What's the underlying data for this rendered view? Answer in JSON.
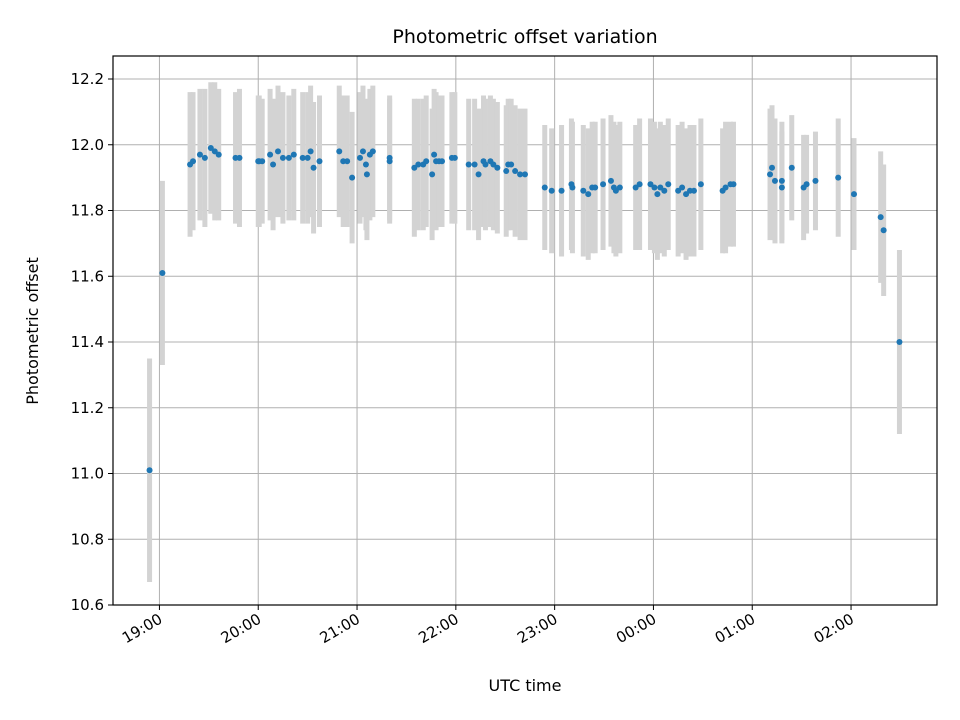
{
  "chart_data": {
    "type": "scatter",
    "title": "Photometric offset variation",
    "xlabel": "UTC time",
    "ylabel": "Photometric offset",
    "x_axis": "time (hours after 19:00 UTC, ticks hourly)",
    "xlim_hours": [
      -0.47,
      7.87
    ],
    "ylim": [
      10.6,
      12.27
    ],
    "x_ticks": [
      "19:00",
      "20:00",
      "21:00",
      "22:00",
      "23:00",
      "00:00",
      "01:00",
      "02:00"
    ],
    "y_ticks": [
      "10.6",
      "10.8",
      "11.0",
      "11.2",
      "11.4",
      "11.6",
      "11.8",
      "12.0",
      "12.2"
    ],
    "grid": true,
    "colors": {
      "point": "#1f77b4",
      "errorbar": "#d3d3d3",
      "grid": "#b0b0b0"
    },
    "points": [
      [
        -0.1,
        11.01,
        0.34
      ],
      [
        0.03,
        11.61,
        0.28
      ],
      [
        0.31,
        11.94,
        0.22
      ],
      [
        0.34,
        11.95,
        0.21
      ],
      [
        0.41,
        11.97,
        0.2
      ],
      [
        0.46,
        11.96,
        0.21
      ],
      [
        0.52,
        11.99,
        0.2
      ],
      [
        0.56,
        11.98,
        0.21
      ],
      [
        0.6,
        11.97,
        0.2
      ],
      [
        0.77,
        11.96,
        0.2
      ],
      [
        0.81,
        11.96,
        0.21
      ],
      [
        1.01,
        11.95,
        0.2
      ],
      [
        1.04,
        11.95,
        0.19
      ],
      [
        1.12,
        11.97,
        0.2
      ],
      [
        1.15,
        11.94,
        0.2
      ],
      [
        1.2,
        11.98,
        0.2
      ],
      [
        1.25,
        11.96,
        0.2
      ],
      [
        1.31,
        11.96,
        0.19
      ],
      [
        1.36,
        11.97,
        0.2
      ],
      [
        1.45,
        11.96,
        0.2
      ],
      [
        1.5,
        11.96,
        0.2
      ],
      [
        1.53,
        11.98,
        0.2
      ],
      [
        1.56,
        11.93,
        0.2
      ],
      [
        1.62,
        11.95,
        0.2
      ],
      [
        1.82,
        11.98,
        0.2
      ],
      [
        1.86,
        11.95,
        0.2
      ],
      [
        1.9,
        11.95,
        0.2
      ],
      [
        1.95,
        11.9,
        0.2
      ],
      [
        2.03,
        11.96,
        0.2
      ],
      [
        2.06,
        11.98,
        0.2
      ],
      [
        2.09,
        11.94,
        0.2
      ],
      [
        2.1,
        11.91,
        0.2
      ],
      [
        2.13,
        11.97,
        0.2
      ],
      [
        2.16,
        11.98,
        0.2
      ],
      [
        2.33,
        11.95,
        0.19
      ],
      [
        2.33,
        11.96,
        0.19
      ],
      [
        1.0,
        11.95,
        0.2
      ],
      [
        2.58,
        11.93,
        0.21
      ],
      [
        2.62,
        11.94,
        0.2
      ],
      [
        2.67,
        11.94,
        0.2
      ],
      [
        2.7,
        11.95,
        0.2
      ],
      [
        2.76,
        11.91,
        0.2
      ],
      [
        2.78,
        11.97,
        0.2
      ],
      [
        2.8,
        11.95,
        0.21
      ],
      [
        2.83,
        11.95,
        0.2
      ],
      [
        2.86,
        11.95,
        0.2
      ],
      [
        2.96,
        11.96,
        0.2
      ],
      [
        2.99,
        11.96,
        0.2
      ],
      [
        3.13,
        11.94,
        0.2
      ],
      [
        3.19,
        11.94,
        0.2
      ],
      [
        3.23,
        11.91,
        0.2
      ],
      [
        3.28,
        11.95,
        0.2
      ],
      [
        3.3,
        11.94,
        0.2
      ],
      [
        3.35,
        11.95,
        0.2
      ],
      [
        3.38,
        11.94,
        0.2
      ],
      [
        3.42,
        11.93,
        0.2
      ],
      [
        3.51,
        11.92,
        0.2
      ],
      [
        3.53,
        11.94,
        0.2
      ],
      [
        3.56,
        11.94,
        0.2
      ],
      [
        3.6,
        11.92,
        0.2
      ],
      [
        3.65,
        11.91,
        0.2
      ],
      [
        3.7,
        11.91,
        0.2
      ],
      [
        3.9,
        11.87,
        0.19
      ],
      [
        3.97,
        11.86,
        0.19
      ],
      [
        4.07,
        11.86,
        0.2
      ],
      [
        4.17,
        11.88,
        0.2
      ],
      [
        4.18,
        11.87,
        0.2
      ],
      [
        4.29,
        11.86,
        0.2
      ],
      [
        4.34,
        11.85,
        0.2
      ],
      [
        4.38,
        11.87,
        0.2
      ],
      [
        4.41,
        11.87,
        0.2
      ],
      [
        4.49,
        11.88,
        0.2
      ],
      [
        4.57,
        11.89,
        0.2
      ],
      [
        4.6,
        11.87,
        0.2
      ],
      [
        4.62,
        11.86,
        0.2
      ],
      [
        4.66,
        11.87,
        0.2
      ],
      [
        4.82,
        11.87,
        0.19
      ],
      [
        4.86,
        11.88,
        0.2
      ],
      [
        4.97,
        11.88,
        0.2
      ],
      [
        5.01,
        11.87,
        0.2
      ],
      [
        5.04,
        11.85,
        0.2
      ],
      [
        5.07,
        11.87,
        0.2
      ],
      [
        5.11,
        11.86,
        0.2
      ],
      [
        5.15,
        11.88,
        0.2
      ],
      [
        5.25,
        11.86,
        0.2
      ],
      [
        5.29,
        11.87,
        0.2
      ],
      [
        5.33,
        11.85,
        0.2
      ],
      [
        5.37,
        11.86,
        0.2
      ],
      [
        5.41,
        11.86,
        0.2
      ],
      [
        5.48,
        11.88,
        0.2
      ],
      [
        5.7,
        11.86,
        0.19
      ],
      [
        5.73,
        11.87,
        0.2
      ],
      [
        5.78,
        11.88,
        0.19
      ],
      [
        5.81,
        11.88,
        0.19
      ],
      [
        6.18,
        11.91,
        0.2
      ],
      [
        6.2,
        11.93,
        0.19
      ],
      [
        6.23,
        11.89,
        0.19
      ],
      [
        6.3,
        11.89,
        0.18
      ],
      [
        6.3,
        11.87,
        0.17
      ],
      [
        6.4,
        11.93,
        0.16
      ],
      [
        6.52,
        11.87,
        0.16
      ],
      [
        6.55,
        11.88,
        0.15
      ],
      [
        6.64,
        11.89,
        0.15
      ],
      [
        6.87,
        11.9,
        0.18
      ],
      [
        7.03,
        11.85,
        0.17
      ],
      [
        7.3,
        11.78,
        0.2
      ],
      [
        7.33,
        11.74,
        0.2
      ],
      [
        7.49,
        11.4,
        0.28
      ]
    ]
  }
}
